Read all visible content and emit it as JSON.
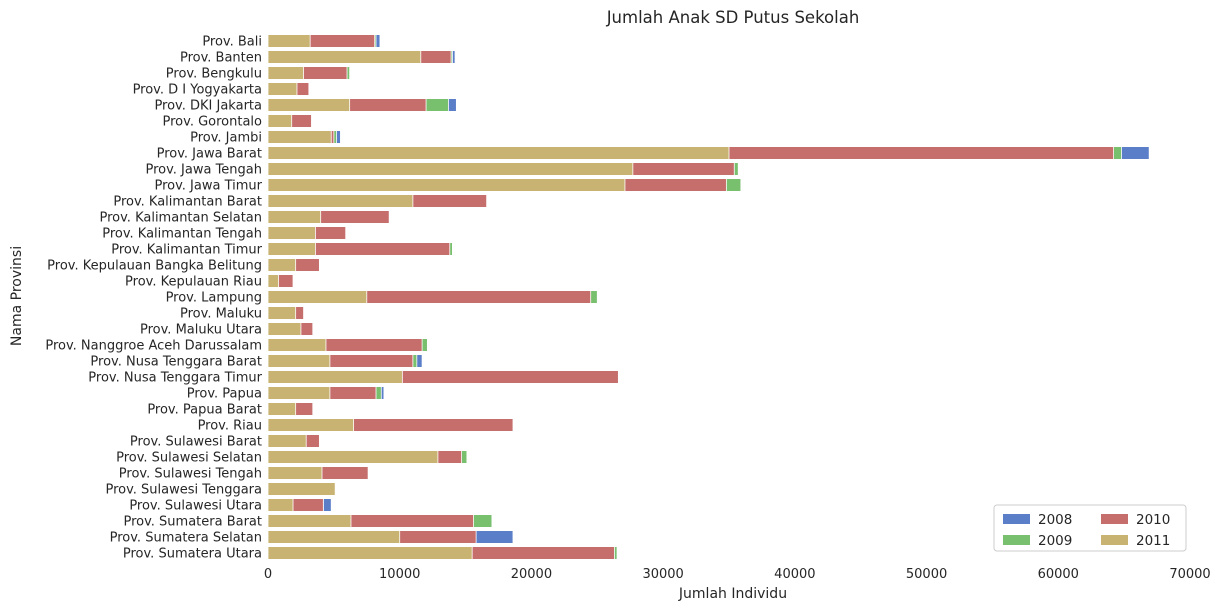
{
  "chart_data": {
    "type": "bar",
    "orientation": "horizontal",
    "stacked": "overlay",
    "title": "Jumlah Anak SD Putus Sekolah",
    "xlabel": "Jumlah Individu",
    "ylabel": "Nama Provinsi",
    "xlim": [
      0,
      70000
    ],
    "xticks": [
      0,
      10000,
      20000,
      30000,
      40000,
      50000,
      60000,
      70000
    ],
    "grid": false,
    "legend_position": "bottom-right",
    "categories": [
      "Prov. Bali",
      "Prov. Banten",
      "Prov. Bengkulu",
      "Prov. D I Yogyakarta",
      "Prov. DKI Jakarta",
      "Prov. Gorontalo",
      "Prov. Jambi",
      "Prov. Jawa Barat",
      "Prov. Jawa Tengah",
      "Prov. Jawa Timur",
      "Prov. Kalimantan Barat",
      "Prov. Kalimantan Selatan",
      "Prov. Kalimantan Tengah",
      "Prov. Kalimantan Timur",
      "Prov. Kepulauan Bangka Belitung",
      "Prov. Kepulauan Riau",
      "Prov. Lampung",
      "Prov. Maluku",
      "Prov. Maluku Utara",
      "Prov. Nanggroe Aceh Darussalam",
      "Prov. Nusa Tenggara Barat",
      "Prov. Nusa Tenggara Timur",
      "Prov. Papua",
      "Prov. Papua Barat",
      "Prov. Riau",
      "Prov. Sulawesi Barat",
      "Prov. Sulawesi Selatan",
      "Prov. Sulawesi Tengah",
      "Prov. Sulawesi Tenggara",
      "Prov. Sulawesi Utara",
      "Prov. Sumatera Barat",
      "Prov. Sumatera Selatan",
      "Prov. Sumatera Utara"
    ],
    "series": [
      {
        "name": "2008",
        "color": "#5a7ec8",
        "values": [
          8500,
          14200,
          6200,
          3000,
          14300,
          3300,
          5500,
          66900,
          35700,
          35900,
          16600,
          9200,
          5900,
          14000,
          3900,
          1900,
          25000,
          2700,
          3400,
          12100,
          11700,
          26600,
          8800,
          3400,
          18600,
          3900,
          15100,
          7600,
          5100,
          4800,
          17000,
          18600,
          26500
        ]
      },
      {
        "name": "2009",
        "color": "#78bf6e",
        "values": [
          8200,
          14000,
          6200,
          3000,
          13700,
          3300,
          5200,
          64800,
          35700,
          35900,
          16600,
          9200,
          5900,
          14000,
          3900,
          1900,
          25000,
          2700,
          3400,
          12100,
          11300,
          26600,
          8600,
          3400,
          18600,
          3900,
          15100,
          7600,
          5100,
          4200,
          17000,
          15800,
          26500
        ]
      },
      {
        "name": "2010",
        "color": "#c66e6c",
        "values": [
          8100,
          13900,
          6000,
          3100,
          12000,
          3300,
          5000,
          64200,
          35400,
          34800,
          16600,
          9200,
          5900,
          13800,
          3900,
          1900,
          24500,
          2700,
          3400,
          11700,
          11000,
          26600,
          8200,
          3400,
          18600,
          3900,
          14700,
          7600,
          5100,
          4200,
          15600,
          15800,
          26300
        ]
      },
      {
        "name": "2011",
        "color": "#c9b372",
        "values": [
          3200,
          11600,
          2700,
          2200,
          6200,
          1800,
          4800,
          35000,
          27700,
          27100,
          11000,
          4000,
          3600,
          3600,
          2100,
          800,
          7500,
          2100,
          2500,
          4400,
          4700,
          10200,
          4700,
          2100,
          6500,
          2900,
          12900,
          4100,
          5100,
          1900,
          6300,
          10000,
          15500
        ]
      }
    ]
  }
}
